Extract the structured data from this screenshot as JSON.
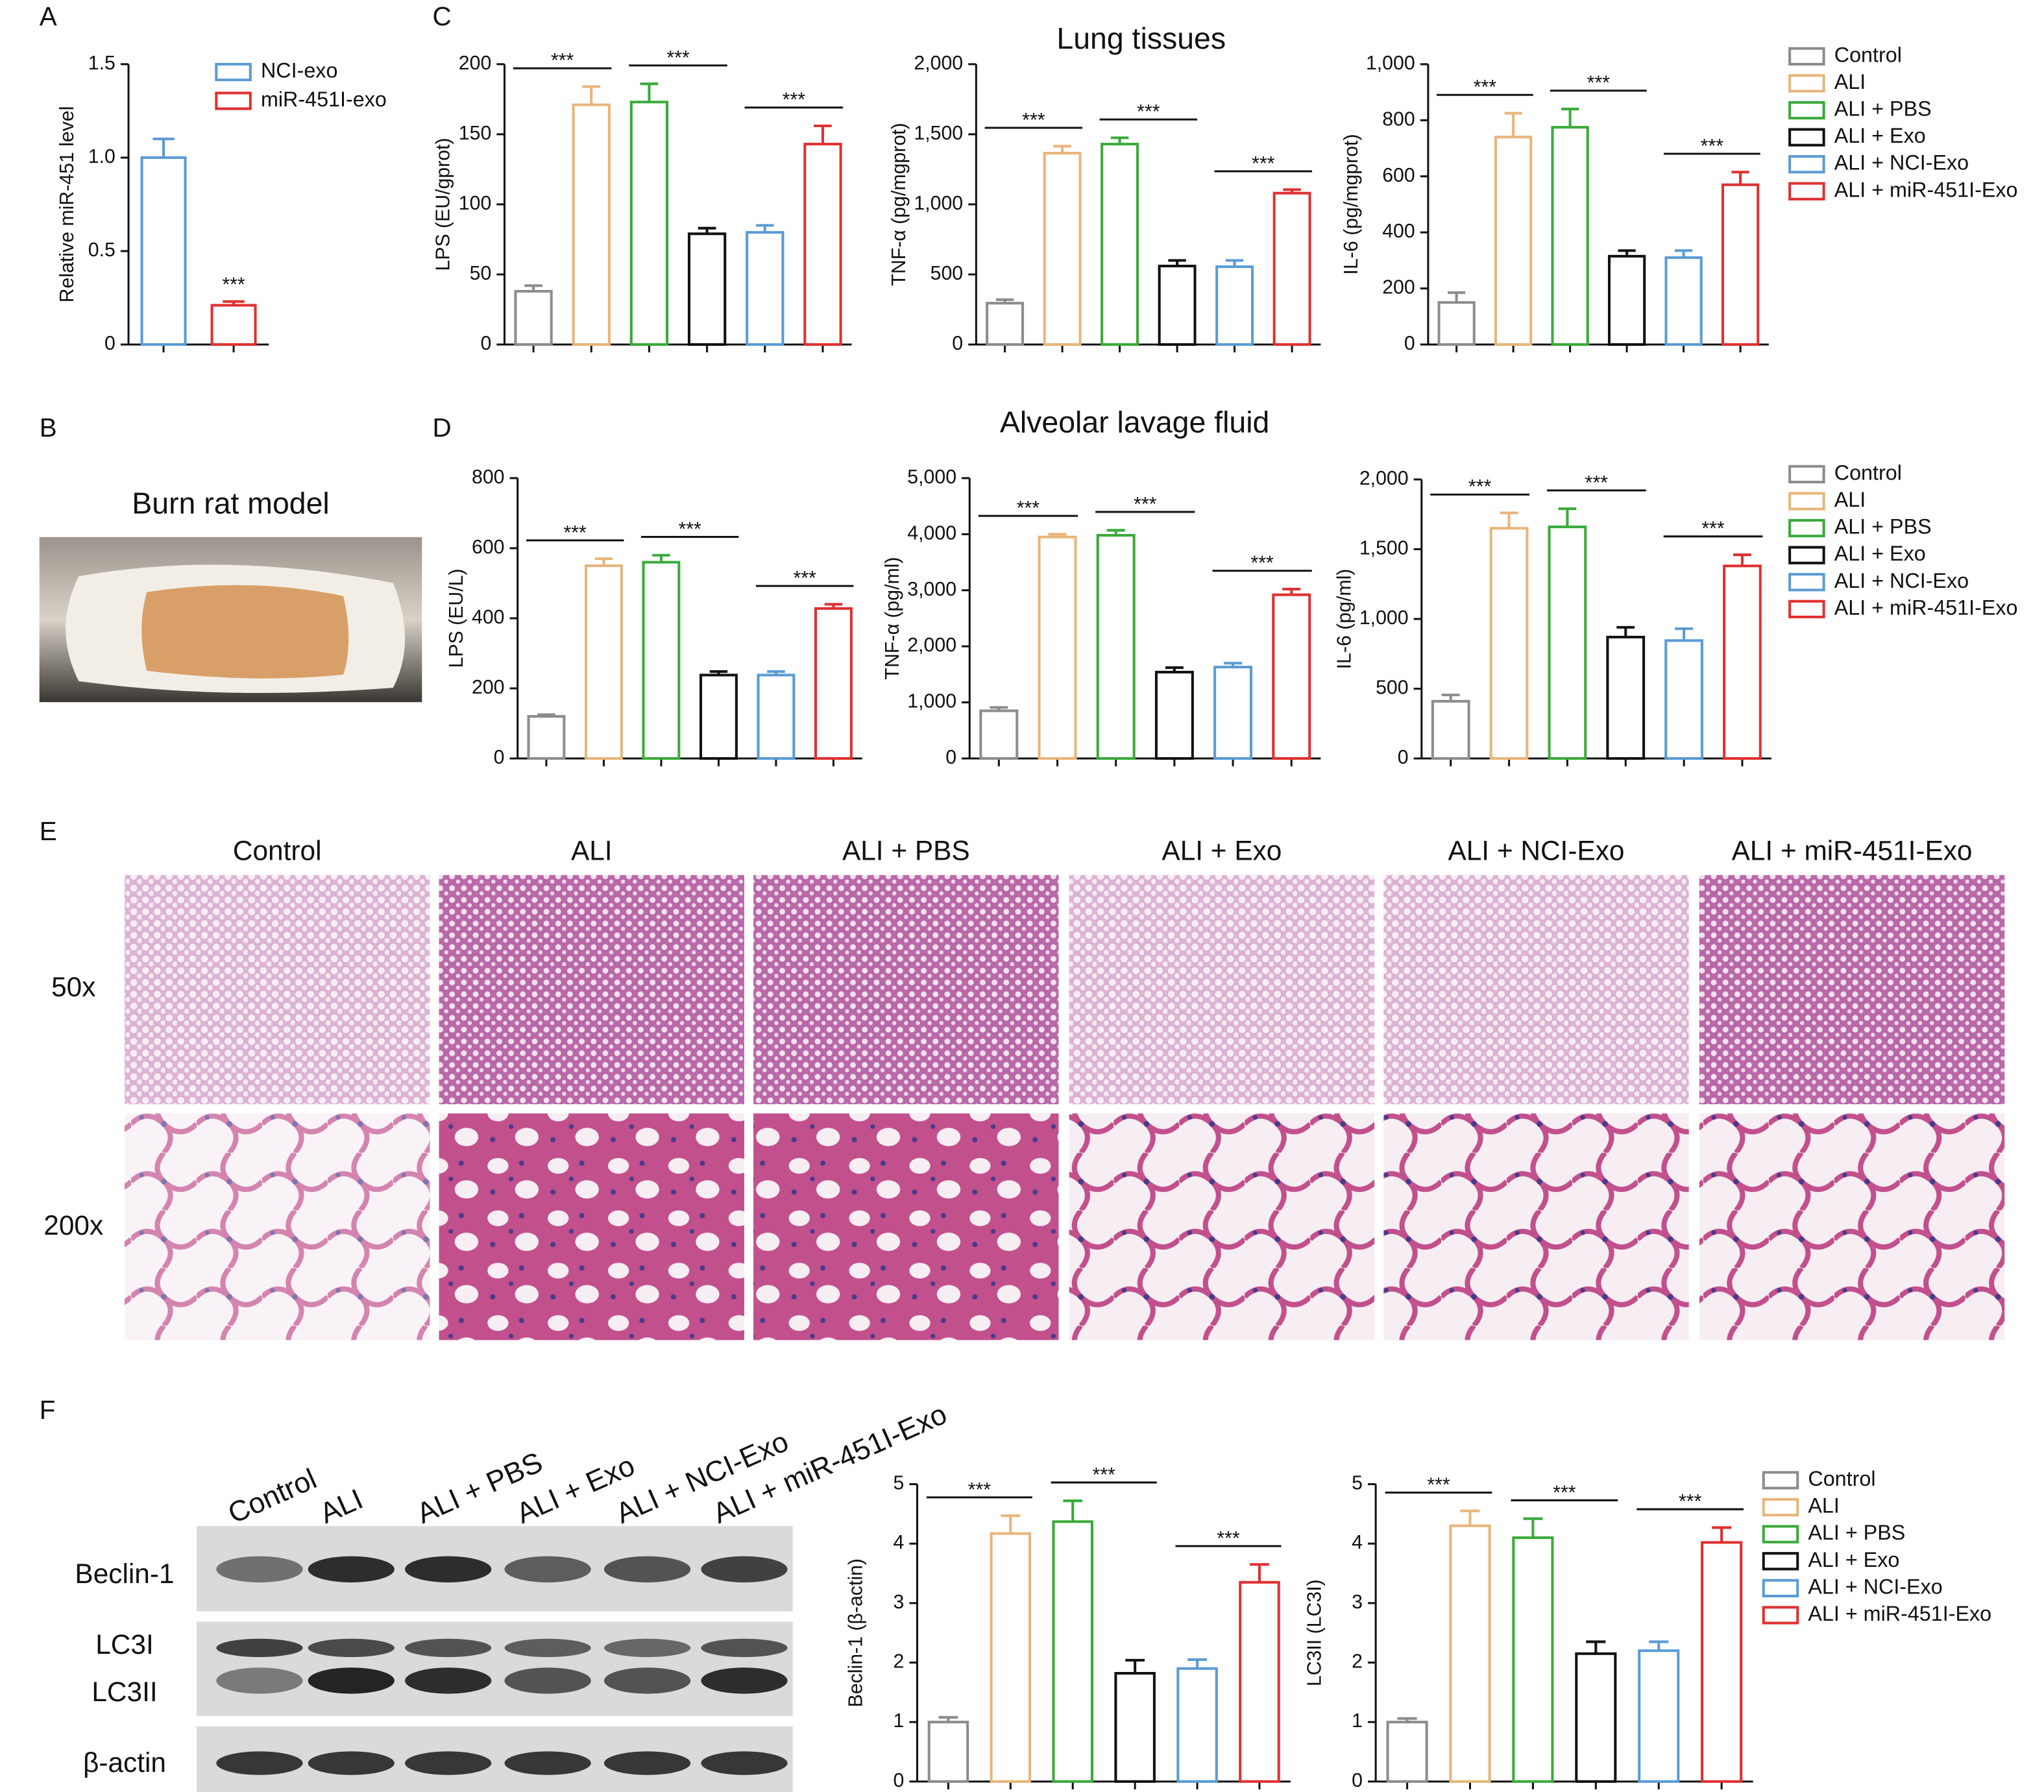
{
  "figure": {
    "panel_labels": [
      "A",
      "B",
      "C",
      "D",
      "E",
      "F"
    ],
    "section_titles": [
      "Lung tissues",
      "Alveolar lavage fluid"
    ],
    "burn_title": "Burn rat model",
    "he_columns": [
      "Control",
      "ALI",
      "ALI + PBS",
      "ALI + Exo",
      "ALI + NCI-Exo",
      "ALI + miR-451I-Exo"
    ],
    "magnifications": [
      "50x",
      "200x"
    ],
    "blot_lanes": [
      "Control",
      "ALI",
      "ALI + PBS",
      "ALI + Exo",
      "ALI + NCI-Exo",
      "ALI + miR-451I-Exo"
    ],
    "blot_rows": [
      "Beclin-1",
      "LC3I",
      "LC3II",
      "β-actin"
    ]
  },
  "chart_data": [
    {
      "type": "bar",
      "ylabel": "Relative miR-451 level",
      "ylim": [
        0,
        1.5
      ],
      "yticks": [
        0,
        0.5,
        {
          "value": 1,
          "label": "1.0"
        },
        1.5
      ],
      "legend": "upper right",
      "annotation": "***",
      "series": [
        {
          "name": "NCI-exo",
          "color": "#5b9bd5",
          "values": [
            1.0
          ],
          "errors": [
            0.1
          ]
        },
        {
          "name": "miR-451I-exo",
          "color": "#e03030",
          "values": [
            0.21
          ],
          "errors": [
            0.02
          ]
        }
      ]
    },
    {
      "type": "bar",
      "ylabel": "LPS (EU/gprot)",
      "ylim": [
        0,
        200
      ],
      "yticks": [
        0,
        50,
        100,
        150,
        200
      ],
      "significance_labels": [
        "***",
        "***",
        "***"
      ],
      "series": [
        {
          "color": "#8c8c8c",
          "values": [
            38
          ],
          "errors": [
            4
          ]
        },
        {
          "color": "#e8b57a",
          "values": [
            171
          ],
          "errors": [
            13
          ]
        },
        {
          "color": "#3aaa3a",
          "values": [
            173
          ],
          "errors": [
            13
          ]
        },
        {
          "color": "#111111",
          "values": [
            79
          ],
          "errors": [
            4
          ]
        },
        {
          "color": "#5b9bd5",
          "values": [
            80
          ],
          "errors": [
            5
          ]
        },
        {
          "color": "#e03030",
          "values": [
            143
          ],
          "errors": [
            13
          ]
        }
      ]
    },
    {
      "type": "bar",
      "ylabel": "TNF-α (pg/mgprot)",
      "ylim": [
        0,
        2000
      ],
      "yticks": [
        0,
        500,
        {
          "value": 1000,
          "label": "1,000"
        },
        {
          "value": 1500,
          "label": "1,500"
        },
        {
          "value": 2000,
          "label": "2,000"
        }
      ],
      "significance_labels": [
        "***",
        "***",
        "***"
      ],
      "series": [
        {
          "color": "#8c8c8c",
          "values": [
            295
          ],
          "errors": [
            25
          ]
        },
        {
          "color": "#e8b57a",
          "values": [
            1365
          ],
          "errors": [
            50
          ]
        },
        {
          "color": "#3aaa3a",
          "values": [
            1430
          ],
          "errors": [
            45
          ]
        },
        {
          "color": "#111111",
          "values": [
            560
          ],
          "errors": [
            40
          ]
        },
        {
          "color": "#5b9bd5",
          "values": [
            555
          ],
          "errors": [
            45
          ]
        },
        {
          "color": "#e03030",
          "values": [
            1080
          ],
          "errors": [
            25
          ]
        }
      ]
    },
    {
      "type": "bar",
      "ylabel": "IL-6 (pg/mgprot)",
      "ylim": [
        0,
        1000
      ],
      "yticks": [
        0,
        200,
        400,
        600,
        800,
        {
          "value": 1000,
          "label": "1,000"
        }
      ],
      "significance_labels": [
        "***",
        "***",
        "***"
      ],
      "legend": "right",
      "series": [
        {
          "name": "Control",
          "color": "#8c8c8c",
          "values": [
            150
          ],
          "errors": [
            35
          ]
        },
        {
          "name": "ALI",
          "color": "#e8b57a",
          "values": [
            740
          ],
          "errors": [
            85
          ]
        },
        {
          "name": "ALI + PBS",
          "color": "#3aaa3a",
          "values": [
            775
          ],
          "errors": [
            65
          ]
        },
        {
          "name": "ALI + Exo",
          "color": "#111111",
          "values": [
            315
          ],
          "errors": [
            20
          ]
        },
        {
          "name": "ALI + NCI-Exo",
          "color": "#5b9bd5",
          "values": [
            310
          ],
          "errors": [
            25
          ]
        },
        {
          "name": "ALI + miR-451I-Exo",
          "color": "#e03030",
          "values": [
            570
          ],
          "errors": [
            45
          ]
        }
      ]
    },
    {
      "type": "bar",
      "ylabel": "LPS (EU/L)",
      "ylim": [
        0,
        800
      ],
      "yticks": [
        0,
        200,
        400,
        600,
        800
      ],
      "significance_labels": [
        "***",
        "***",
        "***"
      ],
      "series": [
        {
          "color": "#8c8c8c",
          "values": [
            120
          ],
          "errors": [
            5
          ]
        },
        {
          "color": "#e8b57a",
          "values": [
            550
          ],
          "errors": [
            20
          ]
        },
        {
          "color": "#3aaa3a",
          "values": [
            560
          ],
          "errors": [
            20
          ]
        },
        {
          "color": "#111111",
          "values": [
            238
          ],
          "errors": [
            10
          ]
        },
        {
          "color": "#5b9bd5",
          "values": [
            238
          ],
          "errors": [
            10
          ]
        },
        {
          "color": "#e03030",
          "values": [
            428
          ],
          "errors": [
            12
          ]
        }
      ]
    },
    {
      "type": "bar",
      "ylabel": "TNF-α (pg/ml)",
      "ylim": [
        0,
        5000
      ],
      "yticks": [
        0,
        {
          "value": 1000,
          "label": "1,000"
        },
        {
          "value": 2000,
          "label": "2,000"
        },
        {
          "value": 3000,
          "label": "3,000"
        },
        {
          "value": 4000,
          "label": "4,000"
        },
        {
          "value": 5000,
          "label": "5,000"
        }
      ],
      "significance_labels": [
        "***",
        "***",
        "***"
      ],
      "series": [
        {
          "color": "#8c8c8c",
          "values": [
            850
          ],
          "errors": [
            60
          ]
        },
        {
          "color": "#e8b57a",
          "values": [
            3950
          ],
          "errors": [
            50
          ]
        },
        {
          "color": "#3aaa3a",
          "values": [
            3980
          ],
          "errors": [
            90
          ]
        },
        {
          "color": "#111111",
          "values": [
            1540
          ],
          "errors": [
            80
          ]
        },
        {
          "color": "#5b9bd5",
          "values": [
            1630
          ],
          "errors": [
            70
          ]
        },
        {
          "color": "#e03030",
          "values": [
            2920
          ],
          "errors": [
            100
          ]
        }
      ]
    },
    {
      "type": "bar",
      "ylabel": "IL-6 (pg/ml)",
      "ylim": [
        0,
        2000
      ],
      "yticks": [
        0,
        500,
        {
          "value": 1000,
          "label": "1,000"
        },
        {
          "value": 1500,
          "label": "1,500"
        },
        {
          "value": 2000,
          "label": "2,000"
        }
      ],
      "significance_labels": [
        "***",
        "***",
        "***"
      ],
      "legend": "right",
      "series": [
        {
          "name": "Control",
          "color": "#8c8c8c",
          "values": [
            410
          ],
          "errors": [
            45
          ]
        },
        {
          "name": "ALI",
          "color": "#e8b57a",
          "values": [
            1650
          ],
          "errors": [
            110
          ]
        },
        {
          "name": "ALI + PBS",
          "color": "#3aaa3a",
          "values": [
            1660
          ],
          "errors": [
            130
          ]
        },
        {
          "name": "ALI + Exo",
          "color": "#111111",
          "values": [
            870
          ],
          "errors": [
            70
          ]
        },
        {
          "name": "ALI + NCI-Exo",
          "color": "#5b9bd5",
          "values": [
            845
          ],
          "errors": [
            85
          ]
        },
        {
          "name": "ALI + miR-451I-Exo",
          "color": "#e03030",
          "values": [
            1380
          ],
          "errors": [
            80
          ]
        }
      ]
    },
    {
      "type": "bar",
      "ylabel": "Beclin-1 (β-actin)",
      "ylim": [
        0,
        5
      ],
      "yticks": [
        0,
        1,
        2,
        3,
        4,
        5
      ],
      "significance_labels": [
        "***",
        "***",
        "***"
      ],
      "series": [
        {
          "color": "#8c8c8c",
          "values": [
            1.0
          ],
          "errors": [
            0.08
          ]
        },
        {
          "color": "#e8b57a",
          "values": [
            4.17
          ],
          "errors": [
            0.3
          ]
        },
        {
          "color": "#3aaa3a",
          "values": [
            4.37
          ],
          "errors": [
            0.35
          ]
        },
        {
          "color": "#111111",
          "values": [
            1.82
          ],
          "errors": [
            0.22
          ]
        },
        {
          "color": "#5b9bd5",
          "values": [
            1.9
          ],
          "errors": [
            0.15
          ]
        },
        {
          "color": "#e03030",
          "values": [
            3.35
          ],
          "errors": [
            0.3
          ]
        }
      ]
    },
    {
      "type": "bar",
      "ylabel": "LC3II (LC3I)",
      "ylim": [
        0,
        5
      ],
      "yticks": [
        0,
        1,
        2,
        3,
        4,
        5
      ],
      "significance_labels": [
        "***",
        "***",
        "***"
      ],
      "legend": "right",
      "series": [
        {
          "name": "Control",
          "color": "#8c8c8c",
          "values": [
            1.0
          ],
          "errors": [
            0.06
          ]
        },
        {
          "name": "ALI",
          "color": "#e8b57a",
          "values": [
            4.3
          ],
          "errors": [
            0.25
          ]
        },
        {
          "name": "ALI + PBS",
          "color": "#3aaa3a",
          "values": [
            4.1
          ],
          "errors": [
            0.32
          ]
        },
        {
          "name": "ALI + Exo",
          "color": "#111111",
          "values": [
            2.15
          ],
          "errors": [
            0.2
          ]
        },
        {
          "name": "ALI + NCI-Exo",
          "color": "#5b9bd5",
          "values": [
            2.2
          ],
          "errors": [
            0.15
          ]
        },
        {
          "name": "ALI + miR-451I-Exo",
          "color": "#e03030",
          "values": [
            4.02
          ],
          "errors": [
            0.25
          ]
        }
      ]
    }
  ]
}
